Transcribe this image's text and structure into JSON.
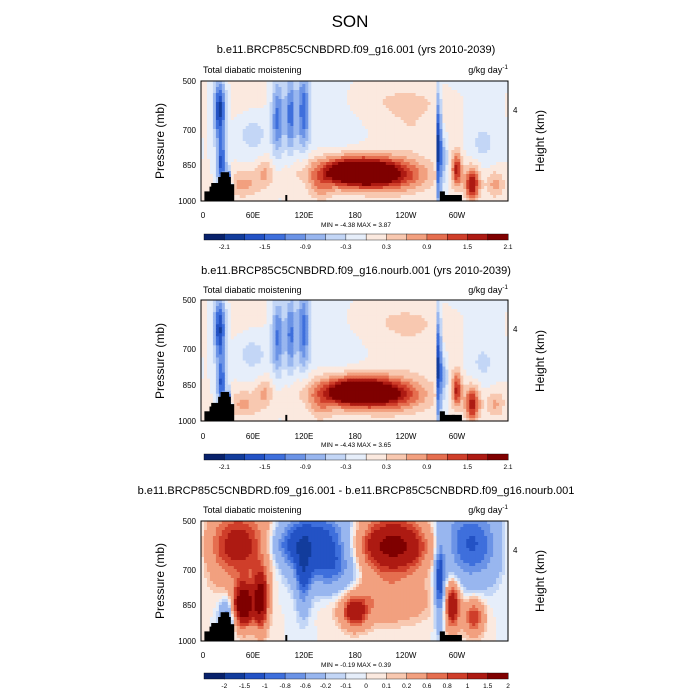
{
  "figure": {
    "title": "SON"
  },
  "colors": {
    "cmap_div": [
      "#08216b",
      "#123c9c",
      "#2352c5",
      "#3e6fdc",
      "#6b93e6",
      "#98b6ef",
      "#c3d6f6",
      "#e6eefa",
      "#fbe9df",
      "#f8c8b0",
      "#f2a07f",
      "#e56e4f",
      "#cf3e2a",
      "#ad1a12",
      "#7f0000"
    ]
  },
  "chart_data": [
    {
      "type": "heatmap",
      "title": "b.e11.BRCP85C5CNBDRD.f09_g16.001 (yrs 2010-2039)",
      "left_label": "Total diabatic moistening",
      "units_label": "g/kg day",
      "units_exp": "-1",
      "ylabel": "Pressure (mb)",
      "y2label": "Height (km)",
      "yticks": [
        "500",
        "700",
        "850",
        "1000"
      ],
      "y2ticks": [
        "4"
      ],
      "xticks": [
        "0",
        "60E",
        "120E",
        "180",
        "120W",
        "60W"
      ],
      "stats": "MIN = -4.38  MAX = 3.87",
      "colorbar_labels": [
        "-2.1",
        "-1.5",
        "-0.9",
        "-0.3",
        "0.3",
        "0.9",
        "1.5",
        "2.1"
      ],
      "scale": 1.0
    },
    {
      "type": "heatmap",
      "title": "b.e11.BRCP85C5CNBDRD.f09_g16.nourb.001 (yrs 2010-2039)",
      "left_label": "Total diabatic moistening",
      "units_label": "g/kg day",
      "units_exp": "-1",
      "ylabel": "Pressure (mb)",
      "y2label": "Height (km)",
      "yticks": [
        "500",
        "700",
        "850",
        "1000"
      ],
      "y2ticks": [
        "4"
      ],
      "xticks": [
        "0",
        "60E",
        "120E",
        "180",
        "120W",
        "60W"
      ],
      "stats": "MIN = -4.43  MAX = 3.65",
      "colorbar_labels": [
        "-2.1",
        "-1.5",
        "-0.9",
        "-0.3",
        "0.3",
        "0.9",
        "1.5",
        "2.1"
      ],
      "scale": 1.0
    },
    {
      "type": "heatmap",
      "title": "b.e11.BRCP85C5CNBDRD.f09_g16.001 - b.e11.BRCP85C5CNBDRD.f09_g16.nourb.001",
      "left_label": "Total diabatic moistening",
      "units_label": "g/kg day",
      "units_exp": "-1",
      "ylabel": "Pressure (mb)",
      "y2label": "Height (km)",
      "yticks": [
        "500",
        "700",
        "850",
        "1000"
      ],
      "y2ticks": [
        "4"
      ],
      "xticks": [
        "0",
        "60E",
        "120E",
        "180",
        "120W",
        "60W"
      ],
      "stats": "MIN = -0.19  MAX = 0.39",
      "colorbar_labels": [
        "-2",
        "-1.5",
        "-1",
        "-0.8",
        "-0.6",
        "-0.2",
        "-0.1",
        "0",
        "0.1",
        "0.2",
        "0.6",
        "0.8",
        "1",
        "1.5",
        "2"
      ],
      "scale": 0.12
    }
  ]
}
